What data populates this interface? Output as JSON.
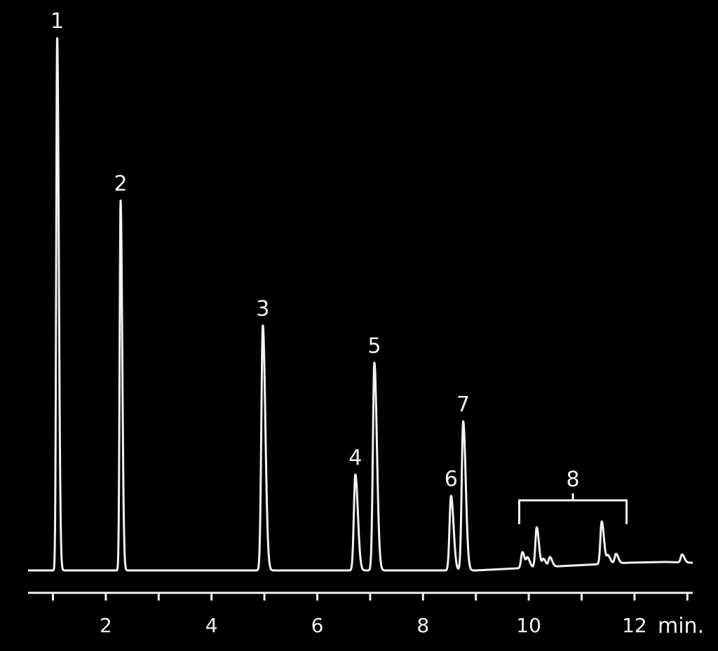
{
  "chart_data": {
    "type": "line",
    "title": "",
    "xlabel": "",
    "ylabel": "",
    "x_unit": "min.",
    "xlim": [
      0.5,
      13.1
    ],
    "ylim": [
      0,
      100
    ],
    "xticks_major": [
      2,
      4,
      6,
      8,
      10,
      12
    ],
    "xticks_minor": [
      1,
      3,
      5,
      7,
      9,
      11,
      13
    ],
    "grid": false,
    "legend": "none",
    "colors": {
      "background": "#000000",
      "trace": "#f2f2f2"
    },
    "baseline": 0,
    "peaks": [
      {
        "label": "1",
        "rt": 1.08,
        "height": 100
      },
      {
        "label": "2",
        "rt": 2.28,
        "height": 69.5
      },
      {
        "label": "3",
        "rt": 4.97,
        "height": 46
      },
      {
        "label": "4",
        "rt": 6.72,
        "height": 18
      },
      {
        "label": "5",
        "rt": 7.08,
        "height": 39
      },
      {
        "label": "6",
        "rt": 8.53,
        "height": 14
      },
      {
        "label": "7",
        "rt": 8.76,
        "height": 28
      }
    ],
    "minor_peaks": [
      {
        "rt": 9.88,
        "height": 3
      },
      {
        "rt": 9.98,
        "height": 1.8
      },
      {
        "rt": 10.15,
        "height": 7.5
      },
      {
        "rt": 10.28,
        "height": 1.5
      },
      {
        "rt": 10.4,
        "height": 1.8
      },
      {
        "rt": 11.38,
        "height": 8
      },
      {
        "rt": 11.5,
        "height": 1.5
      },
      {
        "rt": 11.65,
        "height": 1.8
      },
      {
        "rt": 12.9,
        "height": 1.5
      }
    ],
    "group": {
      "label": "8",
      "from": 9.82,
      "to": 11.85
    }
  }
}
